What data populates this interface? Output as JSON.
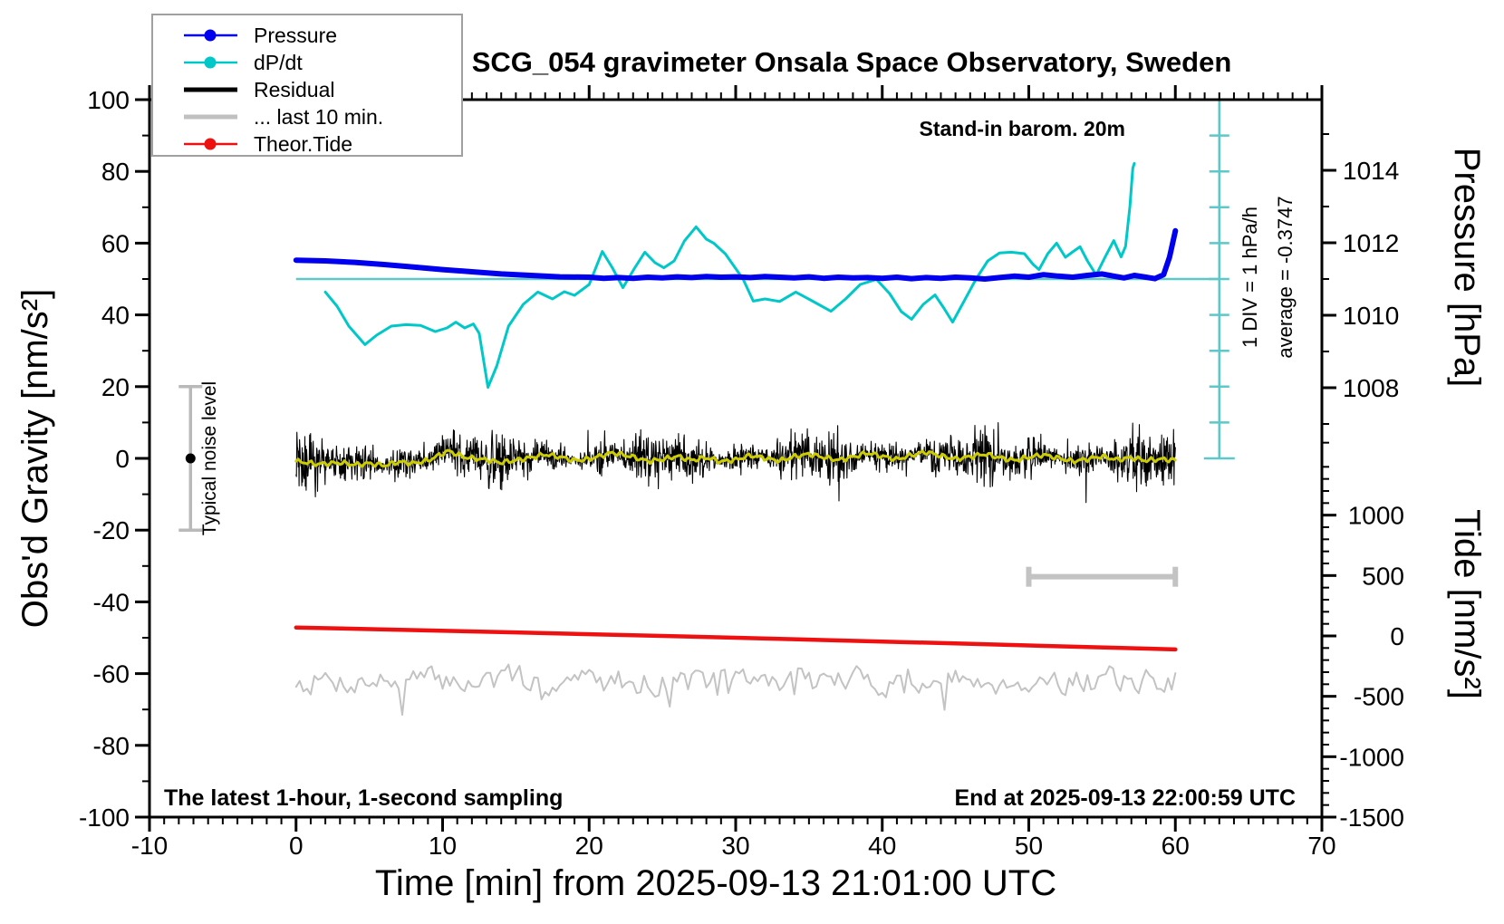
{
  "title": "SCG_054 gravimeter Onsala Space Observatory, Sweden",
  "annotations": {
    "station_note": "Stand-in barom. 20m",
    "sampling_note": "The latest 1-hour, 1-second sampling",
    "end_note": "End at 2025-09-13 22:00:59 UTC",
    "div_scale": "1 DIV = 1 hPa/h",
    "average": "average = -0.3747",
    "noise_label": "Typical noise level"
  },
  "legend": {
    "entries": [
      {
        "label": "Pressure",
        "color": "#0000ee",
        "marker": "line-dot"
      },
      {
        "label": "dP/dt",
        "color": "#00c8c8",
        "marker": "line-dot"
      },
      {
        "label": "Residual",
        "color": "#000000",
        "marker": "thick-line"
      },
      {
        "label": "... last 10 min.",
        "color": "#c0c0c0",
        "marker": "thick-line"
      },
      {
        "label": "Theor.Tide",
        "color": "#ee1111",
        "marker": "line-dot"
      }
    ]
  },
  "colors": {
    "pressure": "#0000ee",
    "dpdt": "#00c8c8",
    "dpdt_reference": "#5ec7c7",
    "residual": "#000000",
    "residual_smoothed": "#cccc00",
    "last10min": "#c3c3c3",
    "theor_tide": "#ee1111",
    "noise_bar": "#b9b9b9",
    "frame": "#000000"
  },
  "chart_data": {
    "type": "line",
    "title": "SCG_054 gravimeter Onsala Space Observatory, Sweden",
    "axes": {
      "x": {
        "label": "Time [min] from 2025-09-13 21:01:00 UTC",
        "min": -10,
        "max": 70,
        "major": 10,
        "minor": 1
      },
      "gravity": {
        "label": "Obs'd Gravity [nm/s²]",
        "min": -100,
        "max": 100,
        "major": 20,
        "minor": 10
      },
      "pressure": {
        "label": "Pressure [hPa]",
        "major_ticks": [
          1008,
          1010,
          1012,
          1014
        ],
        "minor_ticks": [
          1007,
          1009,
          1011,
          1013,
          1015
        ]
      },
      "tide": {
        "label": "Tide [nm/s²]",
        "major_ticks": [
          -1500,
          -1000,
          -500,
          0,
          500,
          1000
        ],
        "minor_step": 100,
        "minor_max": 1600
      }
    },
    "grid": false,
    "legend_position": "top-left",
    "series": [
      {
        "name": "Pressure",
        "units": "hPa",
        "axis": "pressure",
        "points": [
          [
            0,
            1011.52
          ],
          [
            2,
            1011.5
          ],
          [
            4,
            1011.46
          ],
          [
            6,
            1011.4
          ],
          [
            8,
            1011.33
          ],
          [
            10,
            1011.26
          ],
          [
            12,
            1011.2
          ],
          [
            14,
            1011.14
          ],
          [
            16,
            1011.1
          ],
          [
            18,
            1011.06
          ],
          [
            20,
            1011.05
          ],
          [
            21,
            1011.02
          ],
          [
            22,
            1011.04
          ],
          [
            23,
            1011.02
          ],
          [
            24,
            1011.05
          ],
          [
            25,
            1011.03
          ],
          [
            26,
            1011.06
          ],
          [
            27,
            1011.04
          ],
          [
            28,
            1011.07
          ],
          [
            29,
            1011.05
          ],
          [
            30,
            1011.06
          ],
          [
            31,
            1011.04
          ],
          [
            32,
            1011.07
          ],
          [
            33,
            1011.05
          ],
          [
            34,
            1011.03
          ],
          [
            35,
            1011.06
          ],
          [
            36,
            1011.02
          ],
          [
            37,
            1011.05
          ],
          [
            38,
            1011.03
          ],
          [
            39,
            1011.04
          ],
          [
            40,
            1011.02
          ],
          [
            41,
            1011.05
          ],
          [
            42,
            1011.01
          ],
          [
            43,
            1011.04
          ],
          [
            44,
            1011.02
          ],
          [
            45,
            1011.05
          ],
          [
            46,
            1011.03
          ],
          [
            47,
            1011.0
          ],
          [
            48,
            1011.04
          ],
          [
            49,
            1011.08
          ],
          [
            50,
            1011.05
          ],
          [
            51,
            1011.12
          ],
          [
            52,
            1011.08
          ],
          [
            53,
            1011.05
          ],
          [
            54,
            1011.1
          ],
          [
            55,
            1011.14
          ],
          [
            55.8,
            1011.08
          ],
          [
            56.5,
            1011.03
          ],
          [
            57.2,
            1011.1
          ],
          [
            58,
            1011.05
          ],
          [
            58.6,
            1011.01
          ],
          [
            59.2,
            1011.12
          ],
          [
            59.6,
            1011.6
          ],
          [
            60,
            1012.33
          ]
        ]
      },
      {
        "name": "dP/dt",
        "units": "hPa/h relative to average line, 1 DIV = 1 hPa/h",
        "axis": "div",
        "average_line_pressure_hpa": 1011.0,
        "points": [
          [
            2,
            -0.36
          ],
          [
            2.8,
            -0.75
          ],
          [
            3.6,
            -1.3
          ],
          [
            4.7,
            -1.81
          ],
          [
            5.5,
            -1.55
          ],
          [
            6.5,
            -1.3
          ],
          [
            7.5,
            -1.26
          ],
          [
            8.5,
            -1.28
          ],
          [
            9.5,
            -1.45
          ],
          [
            10.3,
            -1.35
          ],
          [
            10.9,
            -1.19
          ],
          [
            11.5,
            -1.35
          ],
          [
            12.1,
            -1.24
          ],
          [
            12.5,
            -1.5
          ],
          [
            13.1,
            -2.99
          ],
          [
            13.7,
            -2.4
          ],
          [
            14.5,
            -1.3
          ],
          [
            15.5,
            -0.7
          ],
          [
            16.5,
            -0.36
          ],
          [
            17.5,
            -0.55
          ],
          [
            18.3,
            -0.35
          ],
          [
            19,
            -0.45
          ],
          [
            20,
            -0.15
          ],
          [
            20.9,
            0.76
          ],
          [
            21.6,
            0.3
          ],
          [
            22.3,
            -0.24
          ],
          [
            23.1,
            0.3
          ],
          [
            23.8,
            0.74
          ],
          [
            24.5,
            0.45
          ],
          [
            25.1,
            0.31
          ],
          [
            25.8,
            0.5
          ],
          [
            26.5,
            1.05
          ],
          [
            27.3,
            1.44
          ],
          [
            28,
            1.1
          ],
          [
            28.5,
            0.99
          ],
          [
            29.3,
            0.69
          ],
          [
            30.5,
            0.0
          ],
          [
            31.2,
            -0.61
          ],
          [
            32,
            -0.55
          ],
          [
            33,
            -0.62
          ],
          [
            34.1,
            -0.36
          ],
          [
            35.2,
            -0.6
          ],
          [
            36.5,
            -0.89
          ],
          [
            37.5,
            -0.55
          ],
          [
            38.5,
            -0.15
          ],
          [
            39.6,
            -0.01
          ],
          [
            40.5,
            -0.4
          ],
          [
            41.3,
            -0.9
          ],
          [
            42,
            -1.11
          ],
          [
            42.8,
            -0.7
          ],
          [
            43.6,
            -0.44
          ],
          [
            44.2,
            -0.8
          ],
          [
            44.8,
            -1.19
          ],
          [
            45.6,
            -0.6
          ],
          [
            46.4,
            0.0
          ],
          [
            47.2,
            0.5
          ],
          [
            48,
            0.72
          ],
          [
            48.8,
            0.74
          ],
          [
            49.7,
            0.7
          ],
          [
            50.3,
            0.4
          ],
          [
            50.7,
            0.26
          ],
          [
            51.3,
            0.7
          ],
          [
            51.9,
            0.99
          ],
          [
            52.5,
            0.6
          ],
          [
            53,
            0.75
          ],
          [
            53.5,
            0.89
          ],
          [
            54,
            0.5
          ],
          [
            54.6,
            0.11
          ],
          [
            55.2,
            0.6
          ],
          [
            55.8,
            1.06
          ],
          [
            56.3,
            0.61
          ],
          [
            56.6,
            0.9
          ],
          [
            56.9,
            2.0
          ],
          [
            57.1,
            3.06
          ],
          [
            57.2,
            3.19
          ]
        ]
      },
      {
        "name": "Residual",
        "units": "nm/s2 (gravity axis)",
        "axis": "gravity",
        "style": "noise",
        "x_range": [
          0,
          60
        ],
        "mean": 0,
        "typical_amplitude": 6,
        "extremes": [
          -16,
          11
        ],
        "seed": 42
      },
      {
        "name": "Residual smoothed",
        "units": "nm/s2 (gravity axis)",
        "axis": "gravity",
        "points": [
          [
            0,
            -0.8
          ],
          [
            1.5,
            -1.6
          ],
          [
            3,
            -1.2
          ],
          [
            4,
            -1.8
          ],
          [
            5,
            -1.4
          ],
          [
            6,
            -2.0
          ],
          [
            7,
            -1.0
          ],
          [
            8,
            -1.4
          ],
          [
            9,
            -0.6
          ],
          [
            10.4,
            2.1
          ],
          [
            11.5,
            0.3
          ],
          [
            13,
            -0.4
          ],
          [
            14,
            -1.2
          ],
          [
            15,
            -0.5
          ],
          [
            16,
            0.2
          ],
          [
            17,
            1.1
          ],
          [
            18,
            0.4
          ],
          [
            19,
            -0.6
          ],
          [
            20,
            -0.2
          ],
          [
            21.6,
            1.6
          ],
          [
            23,
            0.4
          ],
          [
            24,
            -0.8
          ],
          [
            25,
            -0.3
          ],
          [
            26,
            0.6
          ],
          [
            27,
            -0.5
          ],
          [
            28,
            0.2
          ],
          [
            29,
            -0.9
          ],
          [
            30,
            -0.4
          ],
          [
            31,
            0.8
          ],
          [
            32,
            0.1
          ],
          [
            33,
            -0.7
          ],
          [
            34,
            0.5
          ],
          [
            35,
            1.2
          ],
          [
            36,
            0.3
          ],
          [
            37,
            -0.5
          ],
          [
            38,
            0.4
          ],
          [
            39,
            1.5
          ],
          [
            40,
            0.6
          ],
          [
            41,
            -0.3
          ],
          [
            42,
            0.9
          ],
          [
            43,
            1.8
          ],
          [
            44,
            0.7
          ],
          [
            45,
            -0.2
          ],
          [
            46,
            0.5
          ],
          [
            47,
            1.2
          ],
          [
            48,
            0.2
          ],
          [
            49,
            -0.6
          ],
          [
            50,
            0.3
          ],
          [
            51,
            1.0
          ],
          [
            52,
            0.1
          ],
          [
            53,
            -0.8
          ],
          [
            54,
            -0.2
          ],
          [
            55,
            0.6
          ],
          [
            56,
            -0.4
          ],
          [
            57,
            0.2
          ],
          [
            58,
            -0.6
          ],
          [
            59,
            -0.2
          ],
          [
            60,
            -0.5
          ]
        ]
      },
      {
        "name": "... last 10 min.",
        "units": "nm/s2 (gravity axis, offset display)",
        "axis": "gravity",
        "style": "noise",
        "x_range": [
          0,
          60
        ],
        "mean": -62,
        "typical_amplitude": 4.5,
        "extremes": [
          -71.5,
          -54
        ],
        "seed": 7
      },
      {
        "name": "Theor.Tide",
        "units": "nm/s2 (tide axis)",
        "axis": "tide",
        "points": [
          [
            0,
            70
          ],
          [
            15,
            29
          ],
          [
            30,
            -15
          ],
          [
            45,
            -62
          ],
          [
            60,
            -112
          ]
        ]
      }
    ],
    "markers": {
      "noise_level_bar": {
        "x_min": -7.2,
        "center_gravity": 0,
        "half_range": 20
      },
      "last10_window_bar": {
        "from_min": 50,
        "to_min": 60,
        "gravity": -33
      },
      "dpdt_average_line": {
        "gravity_level": 50,
        "from_min": 0,
        "to_min": 63
      },
      "dpdt_div_scale": {
        "x_min": 63,
        "divisions": 10,
        "div_hpa_per_h": 1
      }
    }
  }
}
